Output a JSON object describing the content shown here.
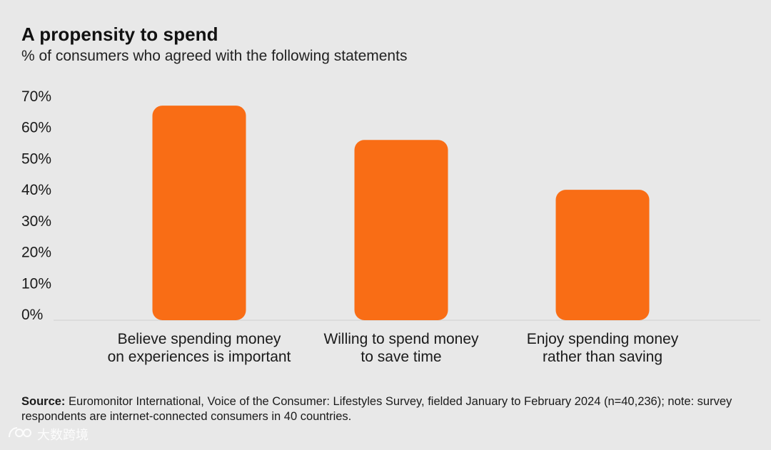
{
  "title": "A propensity to spend",
  "subtitle": "% of consumers who agreed with the following statements",
  "source": {
    "label": "Source:",
    "text": " Euromonitor International, Voice of the Consumer: Lifestyles Survey, fielded January to February 2024 (n=40,236); note: survey respondents are internet-connected consumers in 40 countries."
  },
  "watermark": "大数跨境",
  "chart_data": {
    "type": "bar",
    "categories": [
      [
        "Believe spending money",
        "on experiences is important"
      ],
      [
        "Willing to spend money",
        "to save time"
      ],
      [
        "Enjoy spending money",
        "rather than saving"
      ]
    ],
    "values": [
      67,
      56,
      40
    ],
    "ylim": [
      0,
      70
    ],
    "yticks": [
      "0%",
      "10%",
      "20%",
      "30%",
      "40%",
      "50%",
      "60%",
      "70%"
    ],
    "ytick_values": [
      0,
      10,
      20,
      30,
      40,
      50,
      60,
      70
    ],
    "bar_color": "#f96d15",
    "grid": false,
    "legend": "none",
    "xlabel": "",
    "ylabel": ""
  }
}
